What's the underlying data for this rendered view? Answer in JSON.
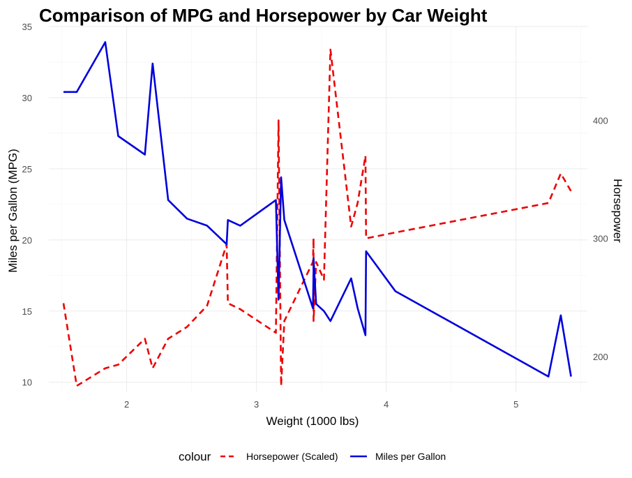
{
  "chart_data": {
    "type": "line",
    "title": "Comparison of MPG and Horsepower by Car Weight",
    "xlabel": "Weight (1000 lbs)",
    "ylabel": "Miles per Gallon (MPG)",
    "y2label": "Horsepower",
    "xlim": [
      1.4,
      5.55
    ],
    "ylim": [
      9.3,
      35.0
    ],
    "y2lim": [
      169.7,
      479.5
    ],
    "xticks": [
      "2",
      "3",
      "4",
      "5"
    ],
    "yticks": [
      "10",
      "15",
      "20",
      "25",
      "30",
      "35"
    ],
    "y2ticks": [
      "200",
      "300",
      "400"
    ],
    "grid": true,
    "legend_position": "bottom",
    "legend_title": "colour",
    "colors": {
      "mpg": "#0000dd",
      "hp": "#ee0000",
      "secondary_axis": "#ee0000",
      "primary_axis": "#0000dd"
    },
    "series": [
      {
        "name": "Horsepower (Scaled)",
        "axis": "right",
        "style": "dashed",
        "color": "#ee0000",
        "x": [
          1.513,
          1.615,
          1.835,
          1.935,
          2.14,
          2.2,
          2.32,
          2.465,
          2.62,
          2.77,
          2.78,
          2.875,
          3.15,
          3.17,
          3.19,
          3.215,
          3.435,
          3.44,
          3.44,
          3.46,
          3.52,
          3.57,
          3.73,
          3.78,
          3.84,
          3.845,
          4.07,
          5.25,
          5.345,
          5.424
        ],
        "y": [
          245,
          175,
          190,
          193,
          215,
          190,
          215,
          225,
          243,
          295,
          245,
          240,
          220,
          400,
          175,
          230,
          280,
          300,
          230,
          280,
          265,
          460,
          310,
          330,
          370,
          300,
          305,
          330,
          355,
          340
        ]
      },
      {
        "name": "Miles per Gallon",
        "axis": "left",
        "style": "solid",
        "color": "#0000dd",
        "x": [
          1.513,
          1.615,
          1.835,
          1.935,
          2.14,
          2.2,
          2.32,
          2.465,
          2.62,
          2.77,
          2.78,
          2.875,
          3.15,
          3.17,
          3.19,
          3.215,
          3.435,
          3.44,
          3.44,
          3.46,
          3.52,
          3.57,
          3.73,
          3.78,
          3.84,
          3.845,
          4.07,
          5.25,
          5.345,
          5.424
        ],
        "y": [
          30.4,
          30.4,
          33.9,
          27.3,
          26.0,
          32.4,
          22.8,
          21.5,
          21.0,
          19.7,
          21.4,
          21.0,
          22.8,
          15.8,
          24.4,
          21.4,
          15.2,
          17.8,
          18.7,
          15.5,
          15.0,
          14.3,
          17.3,
          15.2,
          13.3,
          19.2,
          16.4,
          10.4,
          14.7,
          10.4
        ]
      }
    ]
  }
}
